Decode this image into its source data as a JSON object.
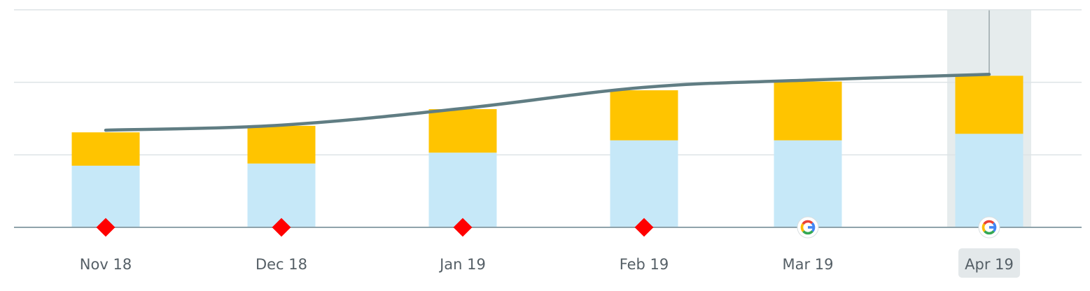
{
  "chart_data": {
    "type": "bar",
    "stacked": true,
    "categories": [
      "Nov 18",
      "Dec 18",
      "Jan 19",
      "Feb 19",
      "Mar 19",
      "Apr 19"
    ],
    "series": [
      {
        "kind": "bar",
        "values": [
          85,
          88,
          103,
          120,
          120,
          129
        ]
      },
      {
        "kind": "bar",
        "values": [
          46,
          52,
          60,
          69,
          81,
          80
        ]
      },
      {
        "kind": "line",
        "values": [
          134,
          141,
          164,
          193,
          203,
          211
        ]
      }
    ],
    "markers": [
      "red-diamond-icon",
      "red-diamond-icon",
      "red-diamond-icon",
      "red-diamond-icon",
      "google-g-icon",
      "google-g-icon"
    ],
    "highlighted_category": "Apr 19",
    "ylim": [
      0,
      300
    ],
    "grid": true,
    "xlabel": "",
    "ylabel": "",
    "colors": {
      "bar_bottom": "#c6e8f8",
      "bar_top": "#ffc400",
      "line": "#607d83",
      "grid": "#dde3e6",
      "axis": "#8fa3ab",
      "highlight": "#e6eced",
      "label_highlight_bg": "#e3e8ea",
      "diamond": "#ff0000"
    }
  }
}
